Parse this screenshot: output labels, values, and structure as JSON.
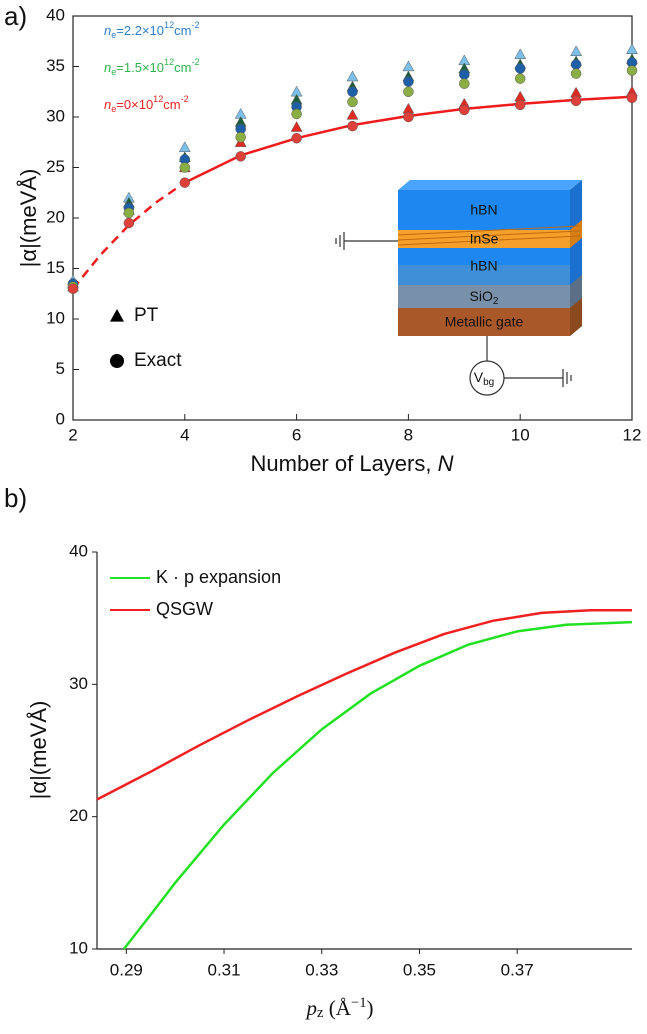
{
  "chart_data": [
    {
      "type": "scatter",
      "panel_label": "a)",
      "x_label": "Number of Layers, ",
      "x_label_var": "N",
      "y_label": "|α|(meVÅ)",
      "x": [
        2,
        3,
        4,
        5,
        6,
        7,
        8,
        9,
        10,
        11,
        12
      ],
      "xlim": [
        2,
        12
      ],
      "xticks": [
        2,
        4,
        6,
        8,
        10,
        12
      ],
      "ylim": [
        0,
        40
      ],
      "yticks": [
        0,
        5,
        10,
        15,
        20,
        25,
        30,
        35,
        40
      ],
      "series": [
        {
          "name_parts": [
            "n",
            "e",
            "=2.2×10",
            "12",
            "cm",
            "-2"
          ],
          "color": "#2b7fc9",
          "pt_color": "#7cc0ea",
          "exact_color": "#1f5fa8",
          "pt_values": [
            13.8,
            22,
            27,
            30.3,
            32.5,
            34,
            35,
            35.6,
            36.2,
            36.5,
            36.7
          ],
          "exact_values": [
            13.5,
            21,
            25.8,
            28.8,
            31,
            32.5,
            33.5,
            34.2,
            34.8,
            35.2,
            35.4
          ]
        },
        {
          "name_parts": [
            "n",
            "e",
            "=1.5×10",
            "12",
            "cm",
            "-2"
          ],
          "color": "#2eb34a",
          "pt_color": "#1c5e3c",
          "exact_color": "#8aae44",
          "pt_values": [
            13.5,
            21.5,
            26,
            29.5,
            31.7,
            33,
            34,
            34.8,
            35.2,
            35.5,
            35.7
          ],
          "exact_values": [
            13.2,
            20.5,
            25,
            28,
            30.3,
            31.5,
            32.5,
            33.3,
            33.8,
            34.3,
            34.6
          ]
        },
        {
          "name_parts": [
            "n",
            "e",
            "=0×10",
            "12",
            "cm",
            "-2"
          ],
          "color": "#e8231f",
          "pt_color": "#e02a22",
          "exact_color": "#e0403a",
          "pt_values": [
            13.2,
            20.8,
            25,
            27.5,
            29,
            30.2,
            30.8,
            31.3,
            32,
            32.4,
            32.5
          ],
          "exact_values": [
            13,
            19.5,
            23.5,
            26.1,
            27.9,
            29.1,
            30,
            30.7,
            31.2,
            31.6,
            31.9
          ]
        }
      ],
      "markers": [
        {
          "label": "PT",
          "shape": "triangle"
        },
        {
          "label": "Exact",
          "shape": "circle"
        }
      ],
      "fit": {
        "color": "#ee1c1c",
        "x": [
          2,
          2.5,
          3,
          3.5,
          4,
          5,
          6,
          7,
          8,
          9,
          10,
          11,
          12
        ],
        "values": [
          13,
          16.4,
          19.3,
          21.6,
          23.5,
          26.2,
          27.9,
          29.2,
          30.1,
          30.8,
          31.3,
          31.7,
          32
        ],
        "dashed_until": 4
      },
      "inset": {
        "top": "hBN",
        "middle": "InSe",
        "bottom": "hBN",
        "oxide": [
          "SiO",
          "2"
        ],
        "gate": "Metallic gate",
        "source": [
          "V",
          "bg"
        ]
      }
    },
    {
      "type": "line",
      "panel_label": "b)",
      "x_label_parts": [
        "p",
        "z",
        " (Å",
        "−1",
        ")"
      ],
      "y_label": "|α|(meVÅ)",
      "xlim": [
        0.284,
        0.3935
      ],
      "xticks": [
        0.29,
        0.31,
        0.33,
        0.35,
        0.37
      ],
      "ylim": [
        10,
        40
      ],
      "yticks": [
        10,
        20,
        30,
        40
      ],
      "series": [
        {
          "name": "K · p expansion",
          "color": "#22e022",
          "x": [
            0.2895,
            0.295,
            0.3,
            0.31,
            0.32,
            0.33,
            0.34,
            0.35,
            0.36,
            0.37,
            0.38,
            0.3935
          ],
          "values": [
            10,
            12.6,
            15,
            19.4,
            23.3,
            26.6,
            29.3,
            31.4,
            33,
            34,
            34.5,
            34.7
          ]
        },
        {
          "name": "QSGW",
          "color": "#ee2020",
          "x": [
            0.284,
            0.295,
            0.305,
            0.315,
            0.325,
            0.335,
            0.345,
            0.355,
            0.365,
            0.375,
            0.385,
            0.3935
          ],
          "values": [
            21.3,
            23.4,
            25.4,
            27.3,
            29.1,
            30.8,
            32.4,
            33.8,
            34.8,
            35.4,
            35.6,
            35.6
          ]
        }
      ]
    }
  ]
}
